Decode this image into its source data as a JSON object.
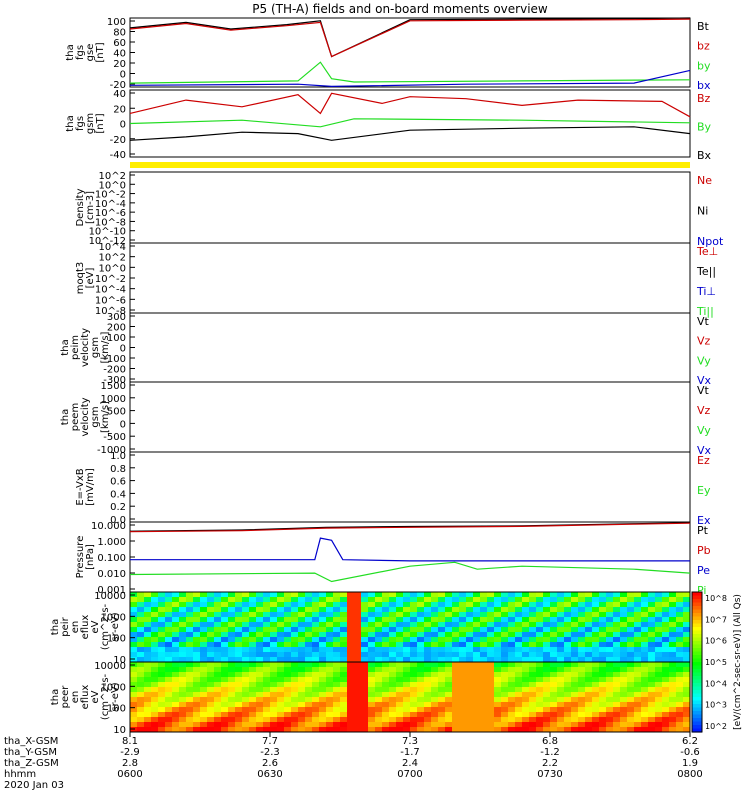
{
  "title": "P5 (TH-A) fields and on-board moments overview",
  "colors": {
    "black": "#000000",
    "red": "#cc0000",
    "green": "#22dd22",
    "blue": "#0000cc",
    "yellow": "#ffee00"
  },
  "chart_data": [
    {
      "type": "line",
      "ylabel": [
        "tha",
        "fgs",
        "gse",
        "[nT]"
      ],
      "yticks": [
        "100",
        "80",
        "60",
        "40",
        "20",
        "0",
        "-20"
      ],
      "ylim": [
        -25,
        100
      ],
      "series": [
        {
          "name": "Bt",
          "color": "black",
          "x": [
            0,
            0.1,
            0.18,
            0.28,
            0.34,
            0.36,
            0.5,
            0.7,
            0.9,
            1
          ],
          "y": [
            82,
            92,
            80,
            88,
            95,
            30,
            97,
            98,
            99,
            100
          ]
        },
        {
          "name": "bz",
          "color": "red",
          "x": [
            0,
            0.1,
            0.18,
            0.28,
            0.34,
            0.36,
            0.5,
            0.7,
            0.9,
            1
          ],
          "y": [
            80,
            90,
            78,
            86,
            92,
            30,
            95,
            96,
            97,
            98
          ]
        },
        {
          "name": "by",
          "color": "green",
          "x": [
            0,
            0.3,
            0.34,
            0.36,
            0.4,
            0.7,
            1
          ],
          "y": [
            -18,
            -14,
            20,
            -10,
            -16,
            -14,
            -12
          ]
        },
        {
          "name": "bx",
          "color": "blue",
          "x": [
            0,
            0.3,
            0.36,
            0.6,
            0.9,
            1
          ],
          "y": [
            -22,
            -20,
            -24,
            -20,
            -18,
            5
          ]
        }
      ]
    },
    {
      "type": "line",
      "ylabel": [
        "tha",
        "fgs",
        "gsm",
        "[nT]"
      ],
      "yticks": [
        "40",
        "20",
        "0",
        "-20",
        "-40"
      ],
      "ylim": [
        -55,
        45
      ],
      "series": [
        {
          "name": "Bz",
          "color": "red",
          "x": [
            0,
            0.1,
            0.2,
            0.3,
            0.34,
            0.36,
            0.45,
            0.5,
            0.6,
            0.7,
            0.8,
            0.95,
            1
          ],
          "y": [
            10,
            30,
            20,
            38,
            10,
            40,
            25,
            35,
            32,
            22,
            30,
            28,
            5
          ]
        },
        {
          "name": "By",
          "color": "green",
          "x": [
            0,
            0.2,
            0.34,
            0.4,
            0.7,
            1
          ],
          "y": [
            -5,
            0,
            -10,
            2,
            0,
            -4
          ]
        },
        {
          "name": "Bx",
          "color": "black",
          "x": [
            0,
            0.1,
            0.2,
            0.3,
            0.36,
            0.5,
            0.7,
            0.9,
            1
          ],
          "y": [
            -30,
            -25,
            -18,
            -20,
            -30,
            -15,
            -12,
            -10,
            -20
          ]
        }
      ]
    },
    {
      "type": "bar",
      "ylabel": [],
      "yticks": [],
      "note_series": []
    },
    {
      "type": "line",
      "ylabel": [
        "Density",
        "[cm-3]"
      ],
      "yticks": [
        "10^2",
        "10^0",
        "10^-2",
        "10^-4",
        "10^-6",
        "10^-8",
        "10^-10",
        "10^-12"
      ],
      "series": [
        {
          "name": "Ne",
          "color": "red"
        },
        {
          "name": "Ni",
          "color": "black"
        },
        {
          "name": "Npot",
          "color": "blue"
        }
      ]
    },
    {
      "type": "line",
      "ylabel": [
        "moqt3",
        "[eV]"
      ],
      "yticks": [
        "10^4",
        "10^2",
        "10^0",
        "10^-2",
        "10^-4",
        "10^-6",
        "10^-8"
      ],
      "series": [
        {
          "name": "Te⊥",
          "color": "red"
        },
        {
          "name": "Te||",
          "color": "black"
        },
        {
          "name": "Ti⊥",
          "color": "blue"
        },
        {
          "name": "Ti||",
          "color": "green"
        }
      ]
    },
    {
      "type": "line",
      "ylabel": [
        "tha",
        "peim",
        "velocity",
        "gsm",
        "[km/s]"
      ],
      "yticks": [
        "300",
        "200",
        "100",
        "0",
        "-100",
        "-200",
        "-300"
      ],
      "ylim": [
        -310,
        310
      ],
      "series": [
        {
          "name": "Vt",
          "color": "black"
        },
        {
          "name": "Vz",
          "color": "red"
        },
        {
          "name": "Vy",
          "color": "green"
        },
        {
          "name": "Vx",
          "color": "blue"
        }
      ]
    },
    {
      "type": "line",
      "ylabel": [
        "tha",
        "peem",
        "velocity",
        "gsm",
        "[km/s]"
      ],
      "yticks": [
        "1500",
        "1000",
        "500",
        "0",
        "-500",
        "-1000"
      ],
      "ylim": [
        -1600,
        1600
      ],
      "series": [
        {
          "name": "Vt",
          "color": "black"
        },
        {
          "name": "Vz",
          "color": "red"
        },
        {
          "name": "Vy",
          "color": "green"
        },
        {
          "name": "Vx",
          "color": "blue"
        }
      ]
    },
    {
      "type": "line",
      "ylabel": [
        "E=-VxB",
        "[mV/m]"
      ],
      "yticks": [
        "1.0",
        "0.8",
        "0.6",
        "0.4",
        "0.2",
        "0.0"
      ],
      "ylim": [
        0,
        1
      ],
      "series": [
        {
          "name": "Ez",
          "color": "red"
        },
        {
          "name": "Ey",
          "color": "green"
        },
        {
          "name": "Ex",
          "color": "blue"
        }
      ]
    },
    {
      "type": "line",
      "ylabel": [
        "Pressure",
        "[nPa]"
      ],
      "yticks": [
        "10.000",
        "1.000",
        "0.100",
        "0.010",
        "0.001"
      ],
      "yscale": "log",
      "ylim": [
        0.001,
        10
      ],
      "series": [
        {
          "name": "Pt",
          "color": "black",
          "x": [
            0,
            0.2,
            0.35,
            0.5,
            0.7,
            0.9,
            1
          ],
          "y": [
            3,
            3.5,
            5,
            5.5,
            6,
            8,
            9
          ]
        },
        {
          "name": "Pb",
          "color": "red",
          "x": [
            0,
            0.2,
            0.35,
            0.5,
            0.7,
            0.9,
            1
          ],
          "y": [
            2.8,
            3.2,
            4.5,
            5,
            5.6,
            7.5,
            8.5
          ]
        },
        {
          "name": "Pe",
          "color": "blue",
          "x": [
            0,
            0.33,
            0.34,
            0.36,
            0.38,
            0.5,
            0.7,
            0.9,
            1
          ],
          "y": [
            0.07,
            0.07,
            1.2,
            0.9,
            0.07,
            0.06,
            0.06,
            0.06,
            0.06
          ]
        },
        {
          "name": "Pi",
          "color": "green",
          "x": [
            0,
            0.33,
            0.36,
            0.5,
            0.58,
            0.62,
            0.7,
            0.9,
            1
          ],
          "y": [
            0.01,
            0.012,
            0.004,
            0.03,
            0.05,
            0.02,
            0.03,
            0.02,
            0.012
          ]
        }
      ]
    },
    {
      "type": "heatmap",
      "ylabel": [
        "tha",
        "peir",
        "en",
        "eflux",
        "eV",
        "(cm^2-s-",
        "sr-eV)"
      ],
      "yticks": [
        "10000",
        "1000",
        "100",
        "10"
      ]
    },
    {
      "type": "heatmap",
      "ylabel": [
        "tha",
        "peer",
        "en",
        "eflux",
        "eV",
        "(cm^2-s-",
        "sr-eV)"
      ],
      "yticks": [
        "10000",
        "1000",
        "100",
        "10"
      ]
    }
  ],
  "colorbar": {
    "ticks": [
      "10^8",
      "10^7",
      "10^6",
      "10^5",
      "10^4",
      "10^3",
      "10^2"
    ],
    "label": "[eV/(cm^2-sec-sr-eV)] (All Qs)"
  },
  "footer": {
    "row_labels": [
      "tha_X-GSM",
      "tha_Y-GSM",
      "tha_Z-GSM",
      "hhmm",
      "2020 Jan 03"
    ],
    "x_columns": [
      [
        "8.1",
        "-2.9",
        "2.8",
        "0600"
      ],
      [
        "7.7",
        "-2.3",
        "2.6",
        "0630"
      ],
      [
        "7.3",
        "-1.7",
        "2.4",
        "0700"
      ],
      [
        "6.8",
        "-1.2",
        "2.2",
        "0730"
      ],
      [
        "6.2",
        "-0.6",
        "1.9",
        "0800"
      ]
    ]
  }
}
